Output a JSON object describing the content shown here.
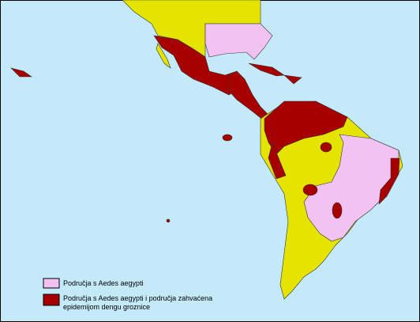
{
  "legend": {
    "items": [
      {
        "label": "Područja s Aedes aegypti"
      },
      {
        "label": "Područja s Aedes aegypti i područja zahvaćena epidemijom dengu groznice"
      }
    ]
  }
}
